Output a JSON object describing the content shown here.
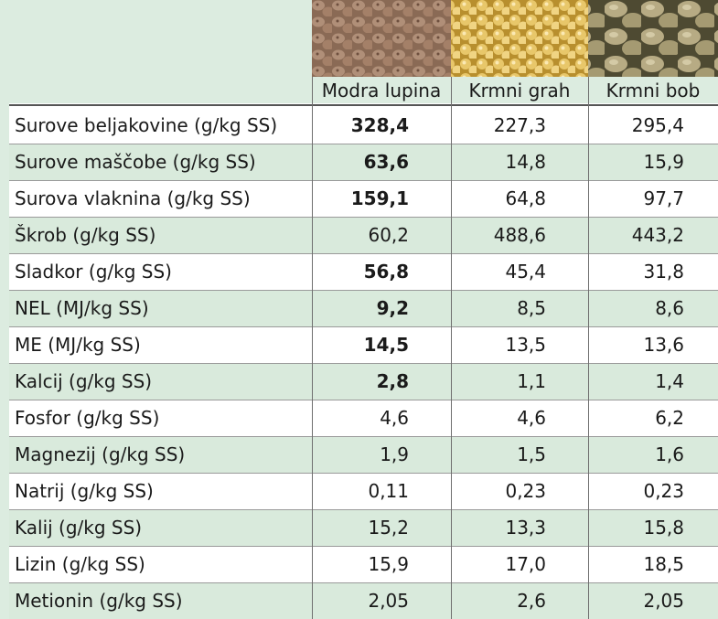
{
  "table": {
    "columns": [
      "Modra lupina",
      "Krmni grah",
      "Krmni bob"
    ],
    "rows": [
      {
        "label": "Surove beljakovine (g/kg SS)",
        "values": [
          "328,4",
          "227,3",
          "295,4"
        ],
        "bold_first": true
      },
      {
        "label": "Surove maščobe (g/kg SS)",
        "values": [
          "63,6",
          "14,8",
          "15,9"
        ],
        "bold_first": true
      },
      {
        "label": "Surova vlaknina (g/kg SS)",
        "values": [
          "159,1",
          "64,8",
          "97,7"
        ],
        "bold_first": true
      },
      {
        "label": "Škrob (g/kg SS)",
        "values": [
          "60,2",
          "488,6",
          "443,2"
        ],
        "bold_first": false
      },
      {
        "label": "Sladkor (g/kg SS)",
        "values": [
          "56,8",
          "45,4",
          "31,8"
        ],
        "bold_first": true
      },
      {
        "label": "NEL (MJ/kg SS)",
        "values": [
          "9,2",
          "8,5",
          "8,6"
        ],
        "bold_first": true
      },
      {
        "label": "ME (MJ/kg SS)",
        "values": [
          "14,5",
          "13,5",
          "13,6"
        ],
        "bold_first": true
      },
      {
        "label": "Kalcij (g/kg SS)",
        "values": [
          "2,8",
          "1,1",
          "1,4"
        ],
        "bold_first": true
      },
      {
        "label": "Fosfor (g/kg SS)",
        "values": [
          "4,6",
          "4,6",
          "6,2"
        ],
        "bold_first": false
      },
      {
        "label": "Magnezij (g/kg SS)",
        "values": [
          "1,9",
          "1,5",
          "1,6"
        ],
        "bold_first": false
      },
      {
        "label": "Natrij (g/kg SS)",
        "values": [
          "0,11",
          "0,23",
          "0,23"
        ],
        "bold_first": false
      },
      {
        "label": "Kalij (g/kg SS)",
        "values": [
          "15,2",
          "13,3",
          "15,8"
        ],
        "bold_first": false
      },
      {
        "label": "Lizin (g/kg SS)",
        "values": [
          "15,9",
          "17,0",
          "18,5"
        ],
        "bold_first": false
      },
      {
        "label": "Metionin (g/kg SS)",
        "values": [
          "2,05",
          "2,6",
          "2,05"
        ],
        "bold_first": false
      }
    ]
  }
}
